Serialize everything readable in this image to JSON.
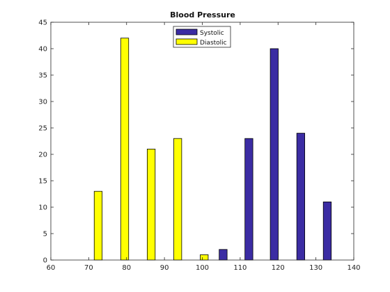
{
  "chart_data": {
    "type": "bar",
    "title": "Blood Pressure",
    "xlabel": "",
    "ylabel": "",
    "xlim": [
      60,
      140
    ],
    "ylim": [
      0,
      45
    ],
    "x_ticks": [
      60,
      70,
      80,
      90,
      100,
      110,
      120,
      130,
      140
    ],
    "y_ticks": [
      0,
      5,
      10,
      15,
      20,
      25,
      30,
      35,
      40,
      45
    ],
    "grid": false,
    "legend_position": "top-center",
    "bar_width": 2.1,
    "series": [
      {
        "name": "Systolic",
        "color": "#3b2ca3",
        "x": [
          105.5,
          112.3,
          119.0,
          126.0,
          133.0
        ],
        "values": [
          2,
          23,
          40,
          24,
          11
        ]
      },
      {
        "name": "Diastolic",
        "color": "#ffff00",
        "x": [
          72.5,
          79.5,
          86.5,
          93.5,
          100.5
        ],
        "values": [
          13,
          42,
          21,
          23,
          1
        ]
      }
    ]
  }
}
